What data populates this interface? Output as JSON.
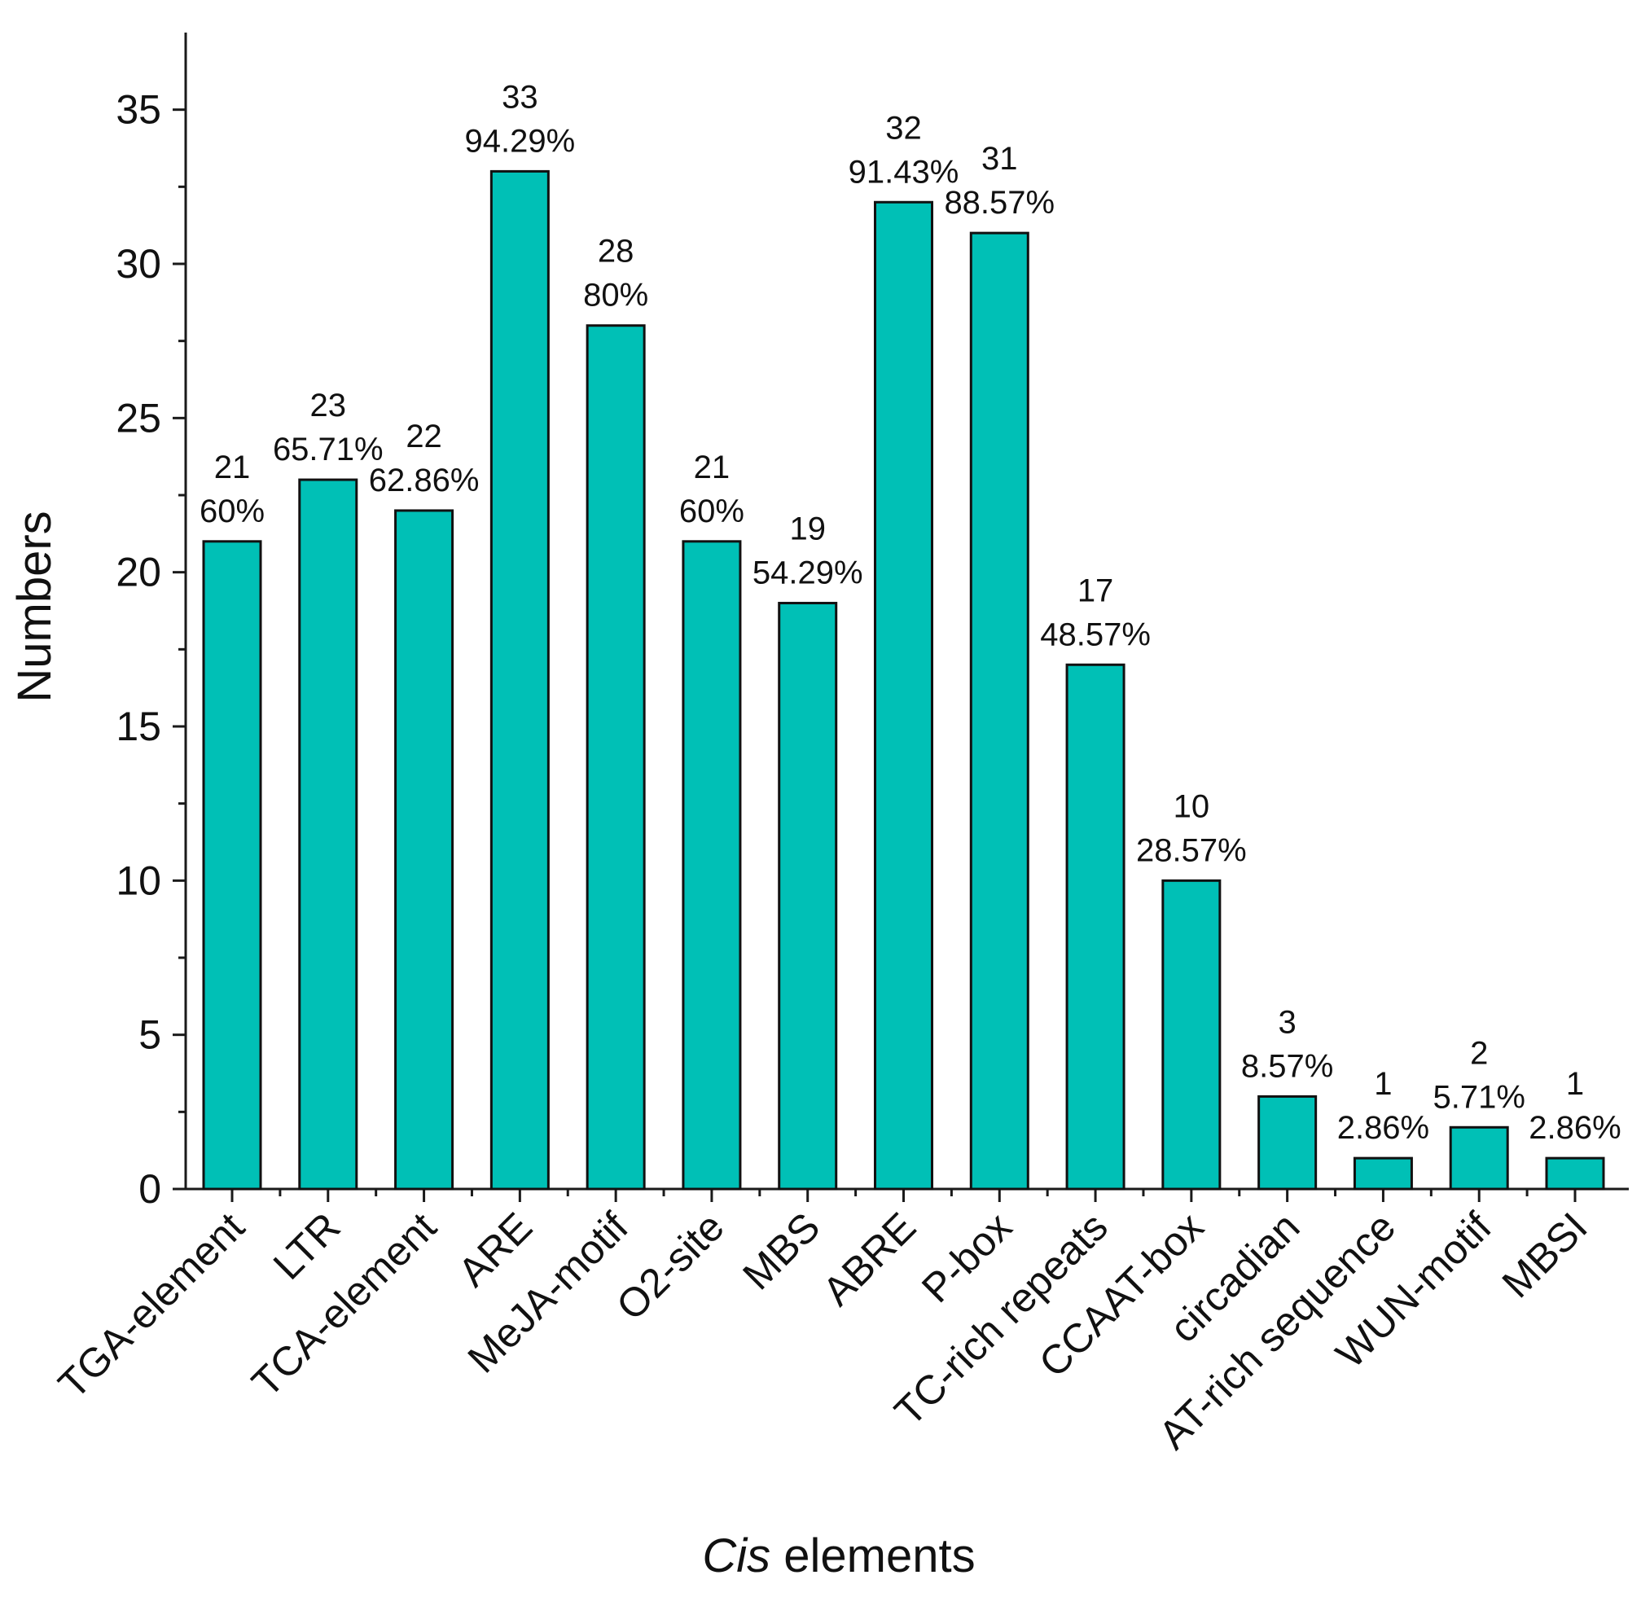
{
  "chart_data": {
    "type": "bar",
    "title": "",
    "xlabel_italic": "Cis",
    "xlabel_rest": " elements",
    "ylabel": "Numbers",
    "ylim": [
      0,
      37.5
    ],
    "yticks": [
      0,
      5,
      10,
      15,
      20,
      25,
      30,
      35
    ],
    "grid": false,
    "bar_color": "#00c0b6",
    "categories": [
      "TGA-element",
      "LTR",
      "TCA-element",
      "ARE",
      "MeJA-motif",
      "O2-site",
      "MBS",
      "ABRE",
      "P-box",
      "TC-rich repeats",
      "CCAAT-box",
      "circadian",
      "AT-rich sequence",
      "WUN-motif",
      "MBSI"
    ],
    "values": [
      21,
      23,
      22,
      33,
      28,
      21,
      19,
      32,
      31,
      17,
      10,
      3,
      1,
      2,
      1
    ],
    "percent_labels": [
      "60%",
      "65.71%",
      "62.86%",
      "94.29%",
      "80%",
      "60%",
      "54.29%",
      "91.43%",
      "88.57%",
      "48.57%",
      "28.57%",
      "8.57%",
      "2.86%",
      "5.71%",
      "2.86%"
    ]
  }
}
